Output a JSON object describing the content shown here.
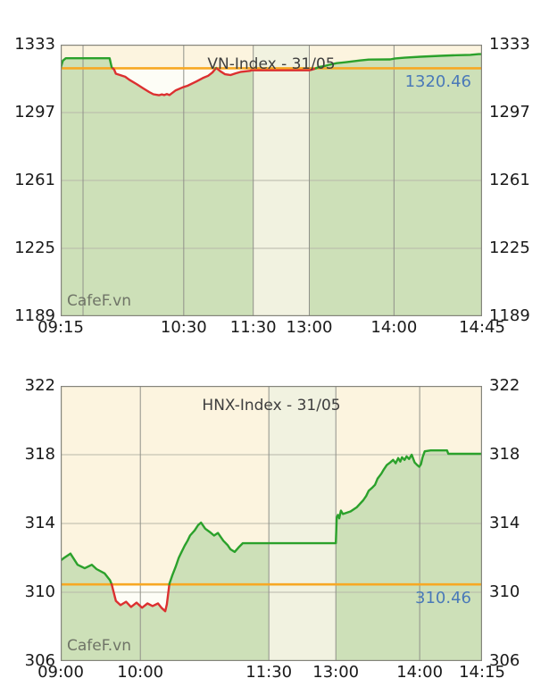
{
  "source_watermark": "CafeF.vn",
  "colors": {
    "page_background": "#ffffff",
    "plot_background": "#fcf4df",
    "session_break_band": "#f1f2e0",
    "area_fill": "#cde0b8",
    "below_reference_fill": "#fdfdf6",
    "line_up": "#2ba12b",
    "line_down": "#dc3030",
    "reference_line": "#f7a823",
    "value_label": "#4a79b8",
    "grid_vertical": "#90918a",
    "grid_horizontal": "#b7b7aa",
    "border": "#84847c",
    "tick_text": "#191919",
    "title_text": "#3e3e3e",
    "watermark_text": "#6f7467"
  },
  "chart_data": [
    {
      "type": "area",
      "title": "VN-Index - 31/05",
      "index_name": "VN-Index",
      "session_date": "31/05",
      "watermark": "CafeF.vn",
      "reference_value": 1320.46,
      "reference_label": "1320.46",
      "ylim": [
        1189,
        1333
      ],
      "grid": true,
      "legend_position": "none",
      "y_ticks": [
        {
          "label": "1333",
          "value": 1333
        },
        {
          "label": "1297",
          "value": 1297
        },
        {
          "label": "1261",
          "value": 1261
        },
        {
          "label": "1225",
          "value": 1225
        },
        {
          "label": "1189",
          "value": 1189
        }
      ],
      "x_ticks": [
        {
          "label": "09:15",
          "fx": 0
        },
        {
          "label": "",
          "fx": 0.053
        },
        {
          "label": "10:30",
          "fx": 0.292
        },
        {
          "label": "11:30",
          "fx": 0.457
        },
        {
          "label": "13:00",
          "fx": 0.59
        },
        {
          "label": "14:00",
          "fx": 0.791
        },
        {
          "label": "14:45",
          "fx": 1
        }
      ],
      "session_break_fx": [
        0.457,
        0.59
      ],
      "series": [
        {
          "name": "VN-Index",
          "points": [
            [
              0.0,
              1320.6
            ],
            [
              0.005,
              1324.5
            ],
            [
              0.012,
              1325.8
            ],
            [
              0.116,
              1325.8
            ],
            [
              0.121,
              1321.0
            ],
            [
              0.127,
              1319.8
            ],
            [
              0.131,
              1317.6
            ],
            [
              0.153,
              1316.0
            ],
            [
              0.163,
              1314.4
            ],
            [
              0.18,
              1312.1
            ],
            [
              0.195,
              1310.0
            ],
            [
              0.21,
              1307.9
            ],
            [
              0.22,
              1306.7
            ],
            [
              0.233,
              1306.2
            ],
            [
              0.24,
              1306.6
            ],
            [
              0.246,
              1306.3
            ],
            [
              0.252,
              1306.8
            ],
            [
              0.258,
              1306.3
            ],
            [
              0.273,
              1308.8
            ],
            [
              0.29,
              1310.4
            ],
            [
              0.301,
              1311.2
            ],
            [
              0.322,
              1313.5
            ],
            [
              0.337,
              1315.3
            ],
            [
              0.35,
              1316.5
            ],
            [
              0.36,
              1318.2
            ],
            [
              0.369,
              1320.7
            ],
            [
              0.379,
              1318.9
            ],
            [
              0.39,
              1317.3
            ],
            [
              0.403,
              1316.9
            ],
            [
              0.415,
              1317.8
            ],
            [
              0.428,
              1318.6
            ],
            [
              0.449,
              1319.1
            ],
            [
              0.453,
              1319.4
            ],
            [
              0.59,
              1319.4
            ],
            [
              0.602,
              1320.1
            ],
            [
              0.612,
              1321.1
            ],
            [
              0.625,
              1321.6
            ],
            [
              0.638,
              1322.4
            ],
            [
              0.655,
              1323.2
            ],
            [
              0.68,
              1323.8
            ],
            [
              0.71,
              1324.6
            ],
            [
              0.731,
              1325.1
            ],
            [
              0.782,
              1325.2
            ],
            [
              0.794,
              1325.7
            ],
            [
              0.816,
              1326.1
            ],
            [
              0.854,
              1326.6
            ],
            [
              0.9,
              1327.1
            ],
            [
              0.939,
              1327.4
            ],
            [
              0.972,
              1327.6
            ],
            [
              0.992,
              1328.0
            ],
            [
              1.0,
              1328.0
            ]
          ]
        }
      ]
    },
    {
      "type": "area",
      "title": "HNX-Index - 31/05",
      "index_name": "HNX-Index",
      "session_date": "31/05",
      "watermark": "CafeF.vn",
      "reference_value": 310.46,
      "reference_label": "310.46",
      "ylim": [
        306,
        322
      ],
      "grid": true,
      "legend_position": "none",
      "y_ticks": [
        {
          "label": "322",
          "value": 322
        },
        {
          "label": "318",
          "value": 318
        },
        {
          "label": "314",
          "value": 314
        },
        {
          "label": "310",
          "value": 310
        },
        {
          "label": "306",
          "value": 306
        }
      ],
      "x_ticks": [
        {
          "label": "09:00",
          "fx": 0
        },
        {
          "label": "10:00",
          "fx": 0.189
        },
        {
          "label": "11:30",
          "fx": 0.494
        },
        {
          "label": "13:00",
          "fx": 0.653
        },
        {
          "label": "14:00",
          "fx": 0.852
        },
        {
          "label": "14:15",
          "fx": 1
        }
      ],
      "session_break_fx": [
        0.494,
        0.653
      ],
      "series": [
        {
          "name": "HNX-Index",
          "points": [
            [
              0.0,
              311.85
            ],
            [
              0.008,
              312.0
            ],
            [
              0.023,
              312.25
            ],
            [
              0.04,
              311.6
            ],
            [
              0.057,
              311.4
            ],
            [
              0.074,
              311.6
            ],
            [
              0.085,
              311.35
            ],
            [
              0.104,
              311.1
            ],
            [
              0.117,
              310.7
            ],
            [
              0.121,
              310.46
            ],
            [
              0.131,
              309.5
            ],
            [
              0.142,
              309.25
            ],
            [
              0.155,
              309.45
            ],
            [
              0.167,
              309.15
            ],
            [
              0.18,
              309.4
            ],
            [
              0.193,
              309.1
            ],
            [
              0.206,
              309.35
            ],
            [
              0.218,
              309.2
            ],
            [
              0.231,
              309.35
            ],
            [
              0.239,
              309.1
            ],
            [
              0.248,
              308.9
            ],
            [
              0.252,
              309.3
            ],
            [
              0.258,
              310.5
            ],
            [
              0.265,
              311.0
            ],
            [
              0.273,
              311.5
            ],
            [
              0.28,
              312.0
            ],
            [
              0.286,
              312.3
            ],
            [
              0.294,
              312.7
            ],
            [
              0.301,
              313.0
            ],
            [
              0.307,
              313.3
            ],
            [
              0.318,
              313.6
            ],
            [
              0.326,
              313.9
            ],
            [
              0.333,
              314.05
            ],
            [
              0.343,
              313.7
            ],
            [
              0.354,
              313.5
            ],
            [
              0.364,
              313.3
            ],
            [
              0.373,
              313.45
            ],
            [
              0.386,
              313.0
            ],
            [
              0.396,
              312.75
            ],
            [
              0.403,
              312.5
            ],
            [
              0.413,
              312.35
            ],
            [
              0.422,
              312.6
            ],
            [
              0.432,
              312.85
            ],
            [
              0.494,
              312.85
            ],
            [
              0.653,
              312.85
            ],
            [
              0.655,
              314.35
            ],
            [
              0.658,
              314.5
            ],
            [
              0.661,
              314.3
            ],
            [
              0.665,
              314.75
            ],
            [
              0.67,
              314.55
            ],
            [
              0.688,
              314.7
            ],
            [
              0.697,
              314.85
            ],
            [
              0.703,
              314.95
            ],
            [
              0.718,
              315.35
            ],
            [
              0.725,
              315.6
            ],
            [
              0.731,
              315.9
            ],
            [
              0.74,
              316.1
            ],
            [
              0.746,
              316.25
            ],
            [
              0.752,
              316.6
            ],
            [
              0.761,
              316.9
            ],
            [
              0.767,
              317.15
            ],
            [
              0.774,
              317.4
            ],
            [
              0.782,
              317.55
            ],
            [
              0.789,
              317.7
            ],
            [
              0.795,
              317.5
            ],
            [
              0.801,
              317.8
            ],
            [
              0.806,
              317.6
            ],
            [
              0.81,
              317.85
            ],
            [
              0.816,
              317.7
            ],
            [
              0.821,
              317.9
            ],
            [
              0.827,
              317.75
            ],
            [
              0.833,
              318.0
            ],
            [
              0.84,
              317.55
            ],
            [
              0.846,
              317.4
            ],
            [
              0.851,
              317.3
            ],
            [
              0.855,
              317.45
            ],
            [
              0.859,
              317.85
            ],
            [
              0.864,
              318.2
            ],
            [
              0.878,
              318.25
            ],
            [
              0.917,
              318.25
            ],
            [
              0.92,
              318.05
            ],
            [
              1.0,
              318.05
            ]
          ]
        }
      ]
    }
  ]
}
